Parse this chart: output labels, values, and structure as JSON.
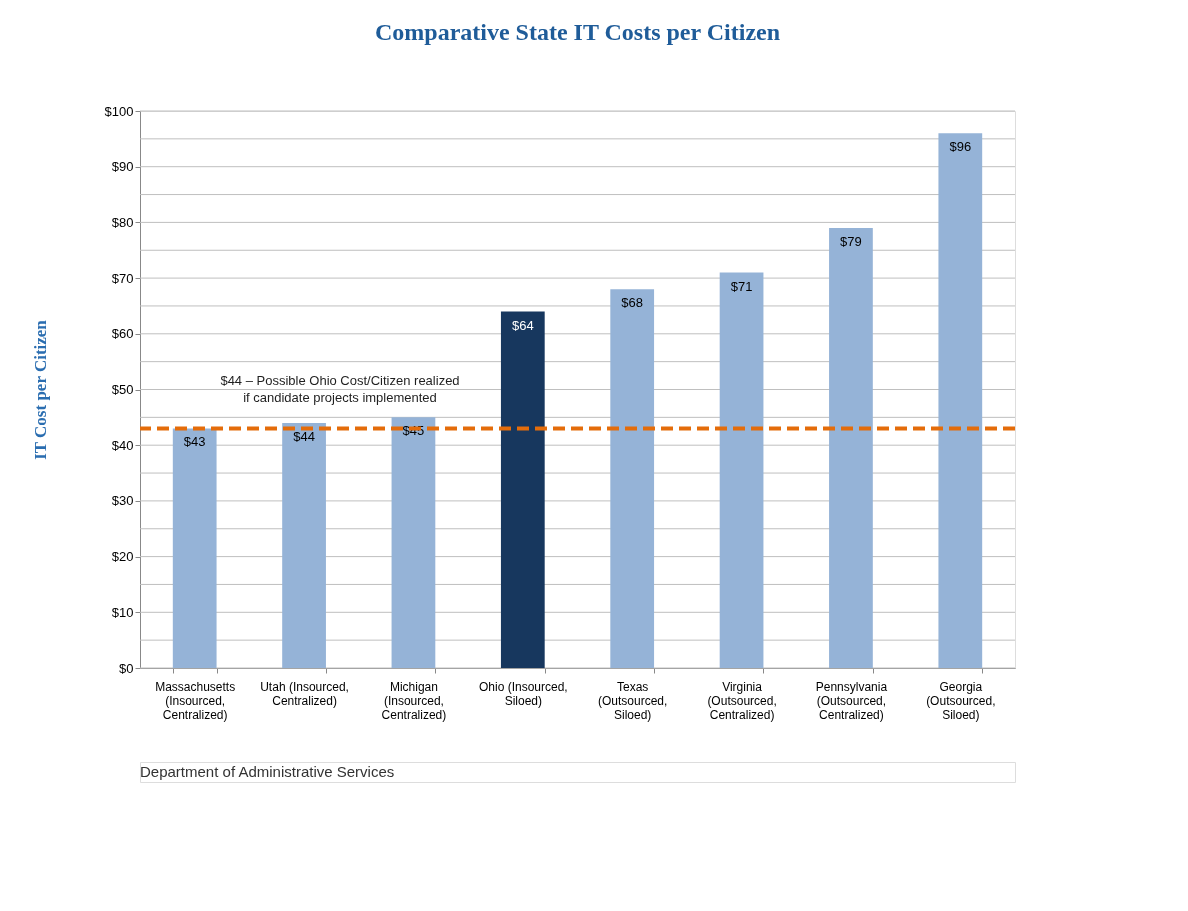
{
  "chart_data": {
    "type": "bar",
    "title": "Comparative State IT Costs per Citizen",
    "ylabel": "IT Cost per Citizen",
    "categories": [
      "Massachusetts (Insourced, Centralized)",
      "Utah (Insourced, Centralized)",
      "Michigan (Insourced, Centralized)",
      "Ohio (Insourced, Siloed)",
      "Texas (Outsourced, Siloed)",
      "Virginia (Outsourced, Centralized)",
      "Pennsylvania (Outsourced, Centralized)",
      "Georgia (Outsourced, Siloed)"
    ],
    "values": [
      43,
      44,
      45,
      64,
      68,
      71,
      79,
      96
    ],
    "colors": [
      "#95b3d7",
      "#95b3d7",
      "#95b3d7",
      "#17375e",
      "#95b3d7",
      "#95b3d7",
      "#95b3d7",
      "#95b3d7"
    ],
    "value_labels": [
      "$43",
      "$44",
      "$45",
      "$64",
      "$68",
      "$71",
      "$79",
      "$96"
    ],
    "ylim": [
      0,
      100
    ],
    "yticks": [
      {
        "value": 0,
        "label": "$0"
      },
      {
        "value": 5,
        "label": null
      },
      {
        "value": 10,
        "label": "$10"
      },
      {
        "value": 15,
        "label": null
      },
      {
        "value": 20,
        "label": "$20"
      },
      {
        "value": 25,
        "label": null
      },
      {
        "value": 30,
        "label": "$30"
      },
      {
        "value": 35,
        "label": null
      },
      {
        "value": 40,
        "label": "$40"
      },
      {
        "value": 45,
        "label": null
      },
      {
        "value": 50,
        "label": "$50"
      },
      {
        "value": 55,
        "label": null
      },
      {
        "value": 60,
        "label": "$60"
      },
      {
        "value": 65,
        "label": null
      },
      {
        "value": 70,
        "label": "$70"
      },
      {
        "value": 75,
        "label": null
      },
      {
        "value": 80,
        "label": "$80"
      },
      {
        "value": 85,
        "label": null
      },
      {
        "value": 90,
        "label": "$90"
      },
      {
        "value": 95,
        "label": null
      },
      {
        "value": 100,
        "label": "$100"
      }
    ],
    "grid": "y",
    "ref_lines": [
      {
        "axis": "y",
        "value": 43,
        "label": "$44 – Possible Ohio Cost/Citizen realized\nif candidate projects implemented",
        "color": "#e46c0a",
        "line_style": "dashed"
      }
    ],
    "annotations": [
      "Department of Administrative Services"
    ]
  }
}
